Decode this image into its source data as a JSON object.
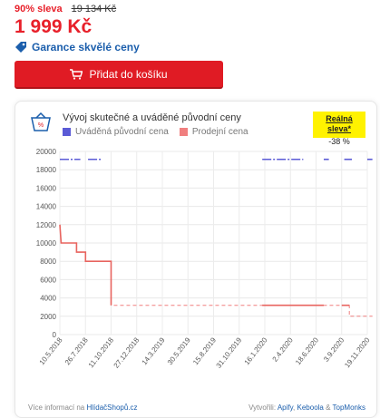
{
  "product": {
    "discount_label": "90% sleva",
    "old_price": "19 134 Kč",
    "price": "1 999 Kč",
    "guarantee_label": "Garance skvělé ceny"
  },
  "cart": {
    "button_label": "Přidat do košíku"
  },
  "history": {
    "title": "Vývoj skutečné a uváděné původní ceny",
    "legend_original": "Uváděná původní cena",
    "legend_sale": "Prodejní cena",
    "badge_title": "Reálná sleva*",
    "badge_value": "-38 %",
    "footer_prefix": "Více informací na",
    "footer_link": "HlídačShopů.cz",
    "credit_prefix": "Vytvořili:",
    "credit_apify": "Apify",
    "credit_sep1": ",",
    "credit_keboola": "Keboola",
    "credit_sep2": "&",
    "credit_topmonks": "TopMonks",
    "colors": {
      "original": "#5b5bd6",
      "sale": "#f07f7f",
      "badge": "#fff200",
      "accent": "#e01b24"
    }
  },
  "chart_data": {
    "type": "line",
    "ylim": [
      0,
      20000
    ],
    "yticks": [
      0,
      2000,
      4000,
      6000,
      8000,
      10000,
      12000,
      14000,
      16000,
      18000,
      20000
    ],
    "xticks": [
      "10.5.2018",
      "26.7.2018",
      "11.10.2018",
      "27.12.2018",
      "14.3.2019",
      "30.5.2019",
      "15.8.2019",
      "31.10.2019",
      "16.1.2020",
      "2.4.2020",
      "18.6.2020",
      "3.9.2020",
      "19.11.2020"
    ],
    "grid": true,
    "series": [
      {
        "name": "Uváděná původní cena",
        "points": [
          [
            0,
            19134
          ],
          [
            0.25,
            19134
          ],
          [
            0.8,
            19134
          ],
          [
            1.1,
            19134
          ],
          [
            1.6,
            19134
          ],
          [
            2.0,
            19134
          ],
          [
            7.9,
            19134
          ],
          [
            8.6,
            19134
          ],
          [
            9.5,
            19134
          ],
          [
            10.2,
            19134
          ],
          [
            10.3,
            19134
          ],
          [
            10.5,
            19134
          ],
          [
            11.1,
            19134
          ],
          [
            11.4,
            19134
          ],
          [
            12.0,
            19134
          ],
          [
            12.2,
            19134
          ]
        ],
        "segments": [
          [
            0,
            0.8
          ],
          [
            1.1,
            1.6
          ],
          [
            7.9,
            9.5
          ],
          [
            10.3,
            10.5
          ],
          [
            11.1,
            11.4
          ],
          [
            12.0,
            12.2
          ]
        ]
      },
      {
        "name": "Prodejní cena",
        "points": [
          [
            0,
            11999
          ],
          [
            0.05,
            9999
          ],
          [
            0.65,
            9999
          ],
          [
            0.65,
            8999
          ],
          [
            1.0,
            8999
          ],
          [
            1.0,
            7999
          ],
          [
            2.0,
            7999
          ],
          [
            2.0,
            3199
          ],
          [
            7.9,
            3199
          ],
          [
            11.3,
            3199
          ],
          [
            11.3,
            1999
          ],
          [
            12.2,
            1999
          ]
        ],
        "solid_until": 2.0,
        "solid_segments": [
          [
            7.9,
            10.3
          ],
          [
            11.0,
            11.3
          ]
        ]
      }
    ]
  }
}
